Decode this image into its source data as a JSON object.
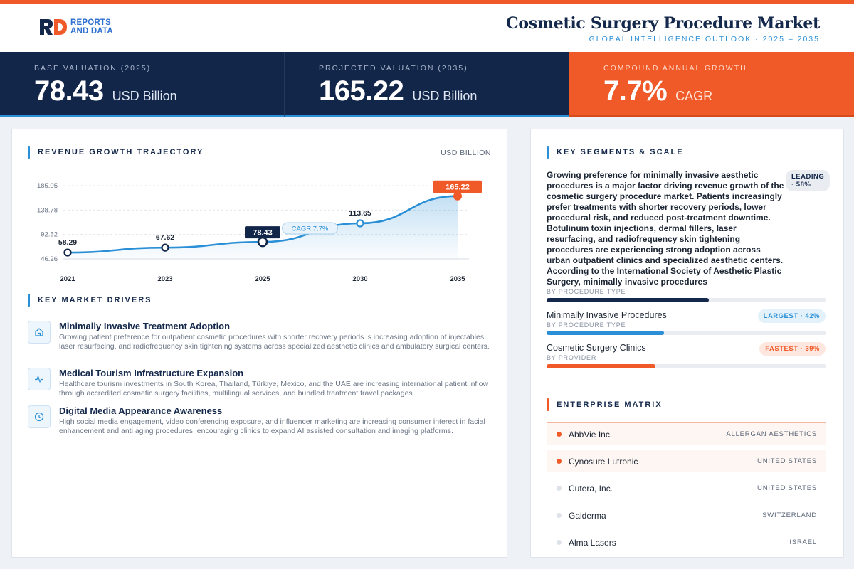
{
  "brand": {
    "logo_letters": "RD",
    "logo_line1": "REPORTS",
    "logo_line2": "AND DATA",
    "accent": "#f05a28",
    "navy": "#12264a",
    "blue": "#2a8fd6"
  },
  "header": {
    "title": "Cosmetic Surgery Procedure Market",
    "subtitle": "GLOBAL INTELLIGENCE OUTLOOK  ·  2025 – 2035"
  },
  "kpis": [
    {
      "label": "BASE VALUATION (2025)",
      "value": "78.43",
      "unit": "USD Billion"
    },
    {
      "label": "PROJECTED VALUATION (2035)",
      "value": "165.22",
      "unit": "USD Billion"
    },
    {
      "label": "COMPOUND ANNUAL GROWTH",
      "value": "7.7%",
      "unit": "CAGR"
    }
  ],
  "revenue": {
    "title": "REVENUE GROWTH TRAJECTORY",
    "unit": "USD BILLION"
  },
  "chart_data": {
    "type": "area",
    "categories": [
      "2021",
      "2023",
      "2025",
      "2030",
      "2035"
    ],
    "values": [
      58.29,
      67.62,
      78.43,
      113.65,
      165.22
    ],
    "value_labels": [
      "58.29",
      "67.62",
      "78.43",
      "113.65",
      "165.22"
    ],
    "y_ticks": [
      "185.05",
      "138.78",
      "92.52",
      "46.26"
    ],
    "ylim": [
      46.26,
      185.05
    ],
    "annotation": "CAGR 7.7%",
    "grid": true,
    "title": "",
    "xlabel": "",
    "ylabel": ""
  },
  "drivers": {
    "title": "KEY MARKET DRIVERS",
    "items": [
      {
        "icon": "home-icon",
        "title": "Minimally Invasive Treatment Adoption",
        "desc": "Growing patient preference for outpatient cosmetic procedures with shorter recovery periods is increasing adoption of injectables, laser resurfacing, and radiofrequency skin tightening systems across specialized aesthetic clinics and ambulatory surgical centers."
      },
      {
        "icon": "pulse-icon",
        "title": "Medical Tourism Infrastructure Expansion",
        "desc": "Healthcare tourism investments in South Korea, Thailand, Türkiye, Mexico, and the UAE are increasing international patient inflow through accredited cosmetic surgery facilities, multilingual services, and bundled treatment travel packages."
      },
      {
        "icon": "clock-icon",
        "title": "Digital Media Appearance Awareness",
        "desc": "High social media engagement, video conferencing exposure, and influencer marketing are increasing consumer interest in facial enhancement and anti aging procedures, encouraging clinics to expand AI assisted consultation and imaging platforms."
      }
    ]
  },
  "segments": {
    "title": "KEY SEGMENTS & SCALE",
    "lead_text": "Growing preference for minimally invasive aesthetic procedures is a major factor driving revenue growth of the cosmetic surgery procedure market. Patients increasingly prefer treatments with shorter recovery periods, lower procedural risk, and reduced post-treatment downtime. Botulinum toxin injections, dermal fillers, laser resurfacing, and radiofrequency skin tightening procedures are experiencing strong adoption across urban outpatient clinics and specialized aesthetic centers. According to the International Society of Aesthetic Plastic Surgery, minimally invasive procedures",
    "lead_badge_1": "LEADING",
    "lead_badge_2": "· 58%",
    "items": [
      {
        "sub": "BY PROCEDURE TYPE",
        "share": 0.58,
        "color": "#14284b"
      },
      {
        "name": "Minimally Invasive Procedures",
        "badge": "LARGEST · 42%",
        "sub": "BY PROCEDURE TYPE",
        "share": 0.42,
        "color": "#2a8fd6"
      },
      {
        "name": "Cosmetic Surgery Clinics",
        "badge": "FASTEST · 39%",
        "sub": "BY PROVIDER",
        "share": 0.39,
        "color": "#f05a28"
      }
    ]
  },
  "enterprise": {
    "title": "ENTERPRISE MATRIX",
    "rows": [
      {
        "name": "AbbVie Inc.",
        "loc": "ALLERGAN AESTHETICS",
        "highlight": true
      },
      {
        "name": "Cynosure Lutronic",
        "loc": "UNITED STATES",
        "highlight": true
      },
      {
        "name": "Cutera, Inc.",
        "loc": "UNITED STATES",
        "highlight": false
      },
      {
        "name": "Galderma",
        "loc": "SWITZERLAND",
        "highlight": false
      },
      {
        "name": "Alma Lasers",
        "loc": "ISRAEL",
        "highlight": false
      }
    ]
  }
}
